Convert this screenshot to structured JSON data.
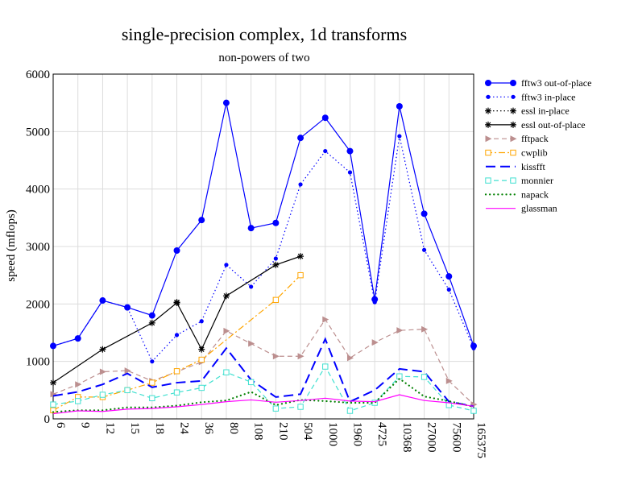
{
  "chart_data": {
    "type": "line",
    "title": "single-precision complex, 1d transforms",
    "subtitle": "non-powers of two",
    "xlabel": "",
    "ylabel": "speed (mflops)",
    "ylim": [
      0,
      6000
    ],
    "yticks": [
      "0",
      "1000",
      "2000",
      "3000",
      "4000",
      "5000",
      "6000"
    ],
    "grid": true,
    "legend_position": "right",
    "categories": [
      "6",
      "9",
      "12",
      "15",
      "18",
      "24",
      "36",
      "80",
      "108",
      "210",
      "504",
      "1000",
      "1960",
      "4725",
      "10368",
      "27000",
      "75600",
      "165375"
    ],
    "series": [
      {
        "name": "fftw3 out-of-place",
        "color": "#0000ff",
        "dash": "",
        "marker": "bigdot",
        "values": [
          1270,
          1400,
          2060,
          1940,
          1800,
          2930,
          3460,
          5500,
          3320,
          3410,
          4890,
          5240,
          4660,
          2080,
          5440,
          3570,
          2480,
          1270
        ]
      },
      {
        "name": "fftw3 in-place",
        "color": "#0000ff",
        "dash": "dot",
        "marker": "dot",
        "values": [
          1270,
          1400,
          2060,
          1940,
          1000,
          1460,
          1700,
          2680,
          2300,
          2790,
          4080,
          4660,
          4290,
          2030,
          4920,
          2940,
          2250,
          1230
        ]
      },
      {
        "name": "essl in-place",
        "color": "#000000",
        "dash": "dot",
        "marker": "star",
        "values": [
          null,
          null,
          null,
          null,
          null,
          2030,
          null,
          null,
          null,
          null,
          null,
          null,
          null,
          null,
          null,
          null,
          null,
          null
        ]
      },
      {
        "name": "essl out-of-place",
        "color": "#000000",
        "dash": "",
        "marker": "star",
        "values": [
          630,
          null,
          1210,
          null,
          1670,
          2020,
          1210,
          2140,
          null,
          2680,
          2830,
          null,
          null,
          null,
          null,
          null,
          null,
          null
        ]
      },
      {
        "name": "fftpack",
        "color": "#bc8f8f",
        "dash": "dash",
        "marker": "triangle",
        "values": [
          430,
          600,
          820,
          840,
          660,
          820,
          990,
          1530,
          1310,
          1090,
          1090,
          1730,
          1060,
          1330,
          1540,
          1560,
          660,
          250
        ]
      },
      {
        "name": "cwplib",
        "color": "#ffa500",
        "dash": "dashdot",
        "marker": "square",
        "values": [
          150,
          380,
          380,
          500,
          630,
          830,
          1030,
          null,
          null,
          2070,
          2500,
          null,
          null,
          null,
          null,
          null,
          null,
          null
        ]
      },
      {
        "name": "kissfft",
        "color": "#0000ff",
        "dash": "longdash",
        "marker": "",
        "values": [
          400,
          470,
          600,
          790,
          550,
          630,
          660,
          1230,
          680,
          380,
          430,
          1390,
          300,
          500,
          870,
          820,
          300,
          220
        ]
      },
      {
        "name": "monnier",
        "color": "#40e0d0",
        "dash": "dash",
        "marker": "square",
        "values": [
          250,
          310,
          420,
          500,
          360,
          460,
          540,
          810,
          640,
          180,
          210,
          910,
          140,
          280,
          740,
          730,
          240,
          140
        ]
      },
      {
        "name": "napack",
        "color": "#008000",
        "dash": "dotted",
        "marker": "",
        "values": [
          120,
          150,
          150,
          200,
          200,
          230,
          290,
          320,
          470,
          240,
          330,
          310,
          280,
          280,
          700,
          390,
          310,
          210
        ]
      },
      {
        "name": "glassman",
        "color": "#ff00ff",
        "dash": "",
        "marker": "",
        "values": [
          90,
          140,
          130,
          170,
          180,
          210,
          250,
          300,
          330,
          290,
          320,
          360,
          310,
          300,
          420,
          320,
          280,
          220
        ]
      }
    ]
  }
}
